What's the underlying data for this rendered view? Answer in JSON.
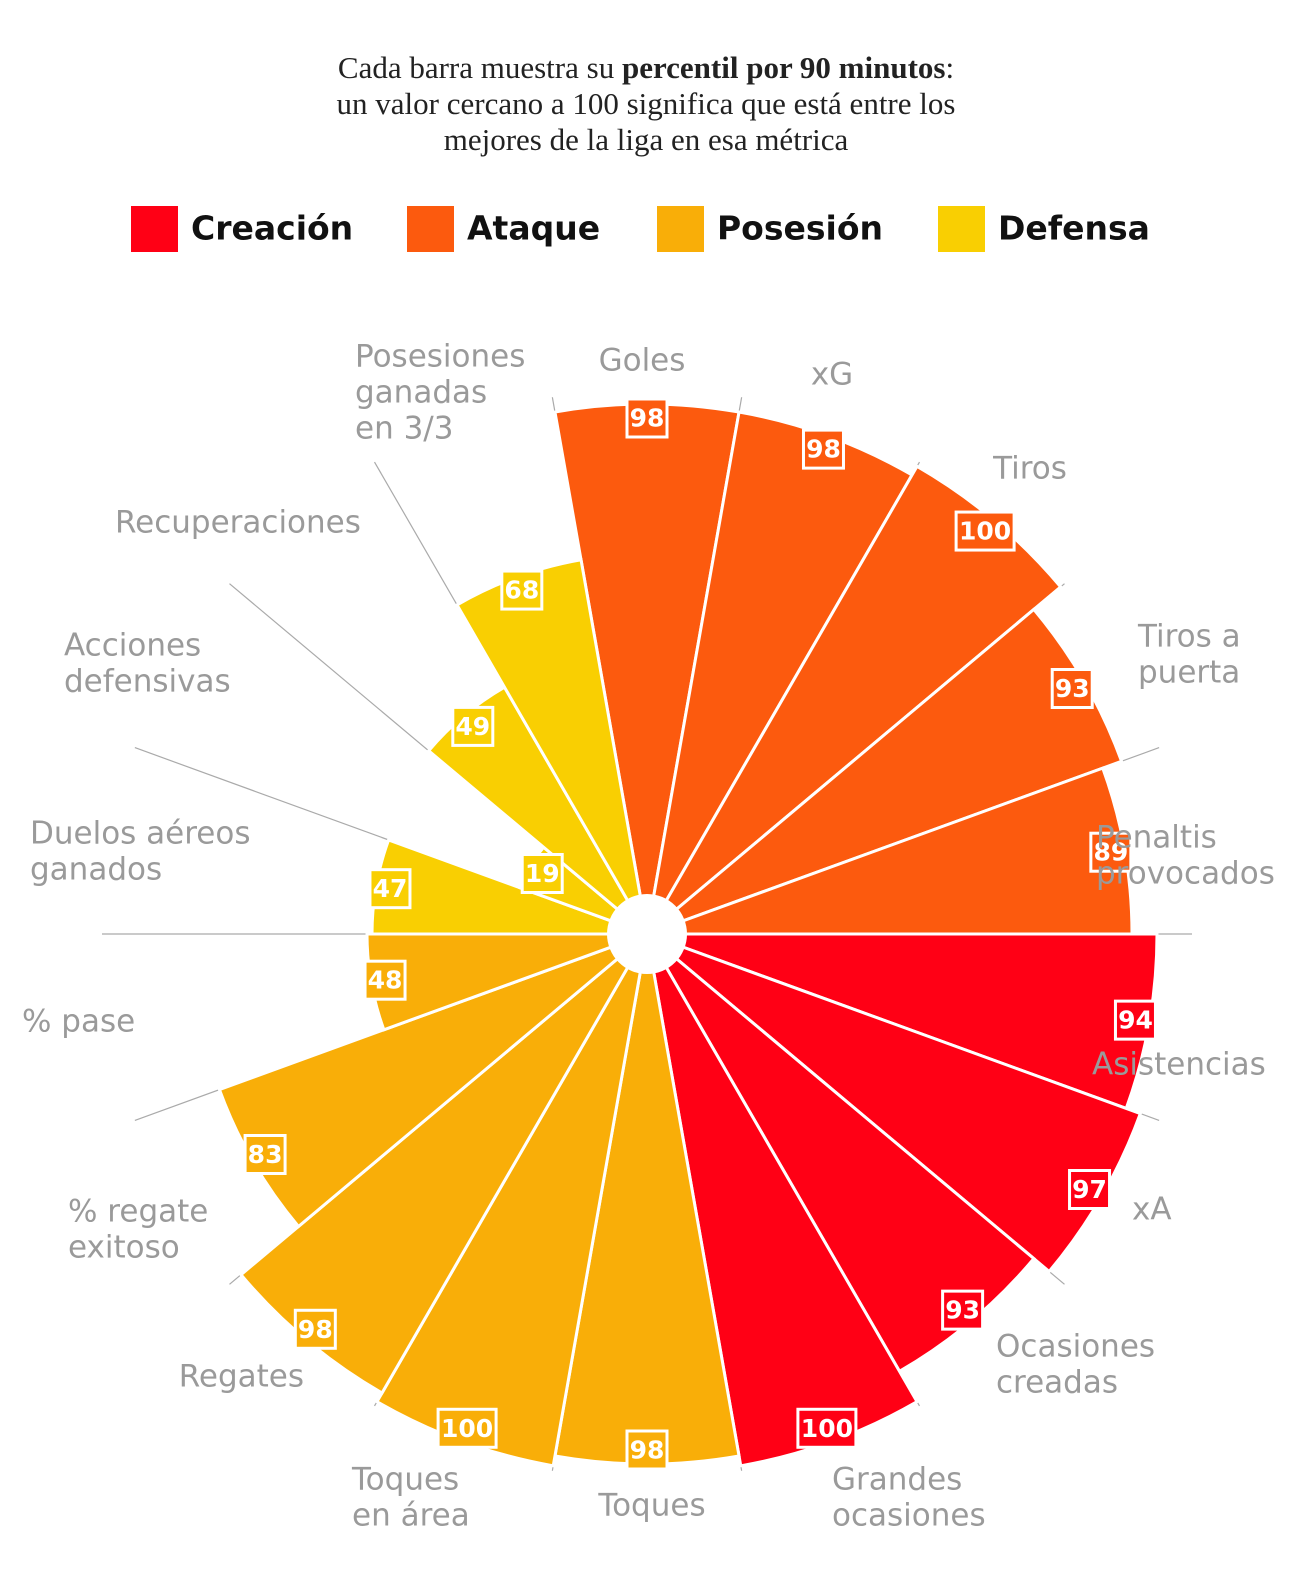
{
  "chart_data": {
    "type": "polar_bar",
    "title": [
      [
        "Cada barra muestra su ",
        "percentil por 90 minutos",
        ":"
      ],
      [
        "un valor cercano a 100 significa que está entre los"
      ],
      [
        "mejores de la liga en esa métrica"
      ]
    ],
    "categories": [
      [
        "Goles"
      ],
      [
        "xG"
      ],
      [
        "Tiros"
      ],
      [
        "Tiros a",
        "puerta"
      ],
      [
        "Penaltis",
        "provocados"
      ],
      [
        "Asistencias"
      ],
      [
        "xA"
      ],
      [
        "Ocasiones",
        "creadas"
      ],
      [
        "Grandes",
        "ocasiones"
      ],
      [
        "Toques"
      ],
      [
        "Toques",
        "en área"
      ],
      [
        "Regates"
      ],
      [
        "% regate",
        "exitoso"
      ],
      [
        "% pase"
      ],
      [
        "Duelos aéreos",
        "ganados"
      ],
      [
        "Acciones",
        "defensivas"
      ],
      [
        "Recuperaciones"
      ],
      [
        "Posesiones",
        "ganadas",
        "en 3/3"
      ]
    ],
    "series": [
      {
        "name": "Creación",
        "color": "#ff0015",
        "values": [
          null,
          null,
          null,
          null,
          null,
          94,
          97,
          93,
          100,
          null,
          null,
          null,
          null,
          null,
          null,
          null,
          null,
          null
        ]
      },
      {
        "name": "Ataque",
        "color": "#fc5a0e",
        "values": [
          98,
          98,
          100,
          93,
          89,
          null,
          null,
          null,
          null,
          null,
          null,
          null,
          null,
          null,
          null,
          null,
          null,
          null
        ]
      },
      {
        "name": "Posesión",
        "color": "#f9ae08",
        "values": [
          null,
          null,
          null,
          null,
          null,
          null,
          null,
          null,
          null,
          98,
          100,
          98,
          83,
          48,
          null,
          null,
          null,
          null
        ]
      },
      {
        "name": "Defensa",
        "color": "#f9cf02",
        "values": [
          null,
          null,
          null,
          null,
          null,
          null,
          null,
          null,
          null,
          null,
          null,
          null,
          null,
          null,
          47,
          19,
          49,
          68
        ]
      }
    ],
    "rlim": [
      0,
      100
    ]
  }
}
